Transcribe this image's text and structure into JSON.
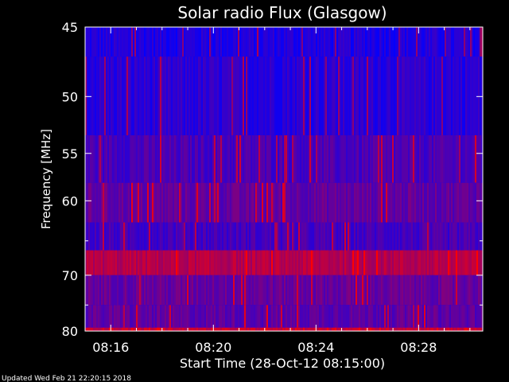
{
  "chart_data": {
    "type": "heatmap",
    "title": "Solar radio Flux (Glasgow)",
    "xlabel": "Start Time (28-Oct-12 08:15:00)",
    "ylabel": "Frequency [MHz]",
    "x_ticks": [
      "08:16",
      "08:20",
      "08:24",
      "08:28"
    ],
    "x_tick_minutes": [
      16,
      20,
      24,
      28
    ],
    "x_range_minutes": [
      15.0,
      30.5
    ],
    "y_ticks": [
      45,
      50,
      55,
      60,
      70,
      80
    ],
    "y_range": [
      45,
      80
    ],
    "y_scale": "reciprocal",
    "colormap": [
      "#0000ff",
      "#ff0000"
    ],
    "bands": [
      {
        "from": 45.0,
        "to": 47.0,
        "level": 0.12
      },
      {
        "from": 47.0,
        "to": 53.3,
        "level": 0.16
      },
      {
        "from": 53.3,
        "to": 58.0,
        "level": 0.28
      },
      {
        "from": 58.0,
        "to": 62.6,
        "level": 0.38
      },
      {
        "from": 62.6,
        "to": 66.3,
        "level": 0.26
      },
      {
        "from": 66.3,
        "to": 70.0,
        "level": 0.7
      },
      {
        "from": 70.0,
        "to": 75.0,
        "level": 0.4
      },
      {
        "from": 75.0,
        "to": 79.3,
        "level": 0.36
      },
      {
        "from": 79.3,
        "to": 80.0,
        "level": 0.8
      }
    ]
  },
  "footer": {
    "updated": "Updated Wed Feb 21 22:20:15 2018"
  }
}
